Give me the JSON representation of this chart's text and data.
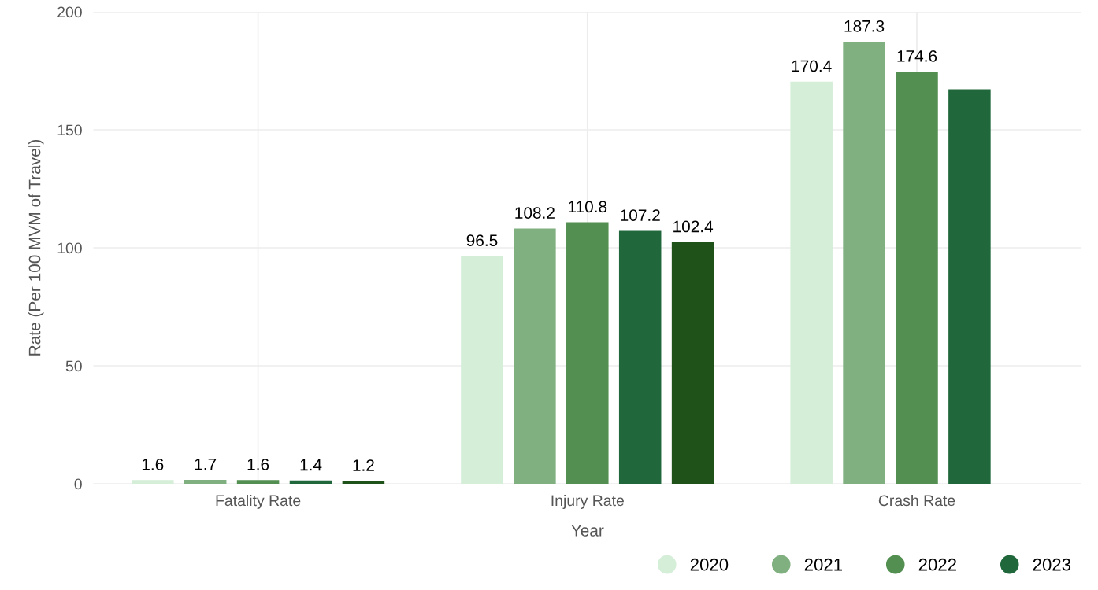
{
  "chart_data": {
    "type": "bar",
    "xlabel": "Year",
    "ylabel": "Rate (Per 100 MVM of Travel)",
    "categories": [
      "Fatality Rate",
      "Injury Rate",
      "Crash Rate"
    ],
    "series": [
      {
        "name": "2020",
        "color": "#d4eed8",
        "values": [
          1.6,
          96.5,
          170.4
        ],
        "value_labels": [
          "1.6",
          "96.5",
          "170.4"
        ]
      },
      {
        "name": "2021",
        "color": "#80b080",
        "values": [
          1.7,
          108.2,
          187.3
        ],
        "value_labels": [
          "1.7",
          "108.2",
          "187.3"
        ]
      },
      {
        "name": "2022",
        "color": "#528f50",
        "values": [
          1.6,
          110.8,
          174.6
        ],
        "value_labels": [
          "1.6",
          "110.8",
          "174.6"
        ]
      },
      {
        "name": "2023",
        "color": "#20683c",
        "values": [
          1.4,
          107.2,
          167.2
        ],
        "value_labels": [
          "1.4",
          "107.2",
          null
        ]
      },
      {
        "color": "#1e5219",
        "values": [
          1.2,
          102.4,
          null
        ],
        "value_labels": [
          "1.2",
          "102.4",
          null
        ]
      }
    ],
    "ylim": [
      0,
      200
    ],
    "yticks": [
      0,
      50,
      100,
      150,
      200
    ],
    "grid": true,
    "legend": "bottom right"
  }
}
